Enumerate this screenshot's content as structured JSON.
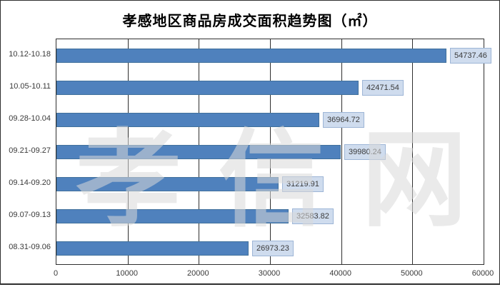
{
  "chart_data": {
    "type": "bar",
    "orientation": "horizontal",
    "title": "孝感地区商品房成交面积趋势图（㎡）",
    "categories": [
      "10.12-10.18",
      "10.05-10.11",
      "09.28-10.04",
      "09.21-09.27",
      "09.14-09.20",
      "09.07-09.13",
      "08.31-09.06"
    ],
    "values": [
      54737.46,
      42471.54,
      36964.72,
      39980.24,
      31219.91,
      32583.82,
      26973.23
    ],
    "value_labels": [
      "54737.46",
      "42471.54",
      "36964.72",
      "39980.24",
      "31219.91",
      "32583.82",
      "26973.23"
    ],
    "x_ticks": [
      "0",
      "10000",
      "20000",
      "30000",
      "40000",
      "50000",
      "60000"
    ],
    "xlim": [
      0,
      60000
    ],
    "xlabel": "",
    "ylabel": "",
    "legend": "none",
    "grid": "vertical",
    "bar_color": "#4f81bd",
    "bar_border_color": "#41719c",
    "label_box_fill": "#cfdcee",
    "label_box_border": "#9db5d6",
    "gridline_color": "#2f2f2f",
    "frame_color": "#2f2f2f"
  },
  "watermark": {
    "text": "孝信网"
  }
}
